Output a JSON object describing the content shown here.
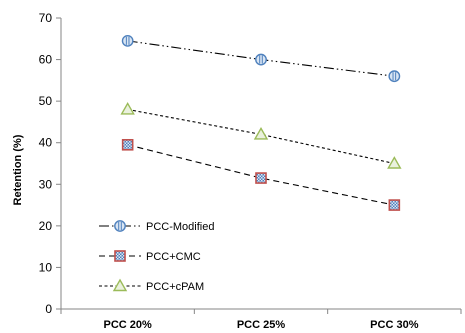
{
  "chart_data": {
    "type": "line",
    "categories": [
      "PCC 20%",
      "PCC 25%",
      "PCC 30%"
    ],
    "ylabel": "Retention (%)",
    "xlabel": "",
    "ylim": [
      0,
      70
    ],
    "yticks": [
      0,
      10,
      20,
      30,
      40,
      50,
      60,
      70
    ],
    "grid": false,
    "legend_position": "lower-left",
    "series": [
      {
        "name": "PCC-Modified",
        "values": [
          64.5,
          60,
          56
        ],
        "marker": "circle",
        "line": "dash-dot-dot",
        "color": "#000000",
        "marker_color": "#4F81BD"
      },
      {
        "name": "PCC+CMC",
        "values": [
          39.5,
          31.5,
          25
        ],
        "marker": "square",
        "line": "dashed",
        "color": "#000000",
        "marker_color": "#C0504D"
      },
      {
        "name": "PCC+cPAM",
        "values": [
          48,
          42,
          35
        ],
        "marker": "triangle",
        "line": "dotted",
        "color": "#000000",
        "marker_color": "#9BBB59"
      }
    ]
  }
}
